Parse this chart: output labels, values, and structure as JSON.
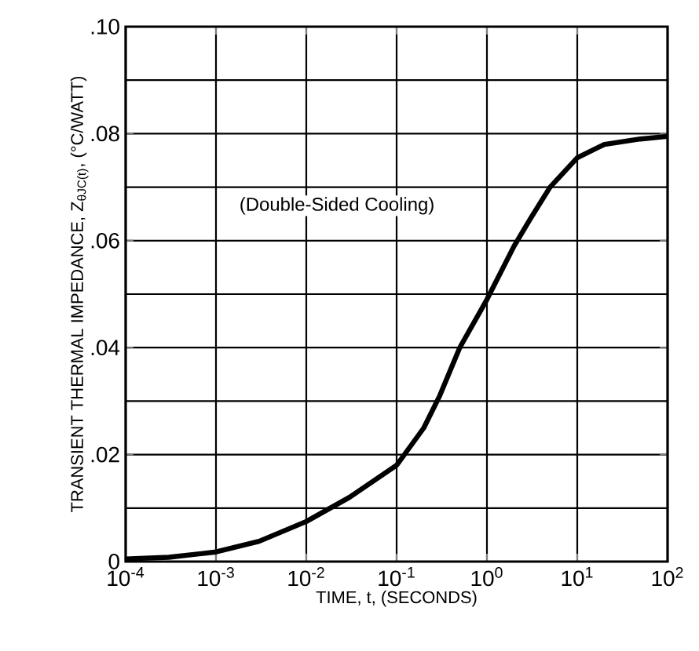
{
  "chart_data": {
    "type": "line",
    "xlabel": "TIME, t, (SECONDS)",
    "ylabel": "TRANSIENT THERMAL IMPEDANCE, Z$_{θJC(t)}$, (°C/WATT)",
    "annotations": [
      "(Double-Sided Cooling)"
    ],
    "log": "x",
    "grid": true,
    "marker": "none",
    "line_style": "solid",
    "xlim": [
      0.0001,
      100
    ],
    "ylim": [
      0,
      0.1
    ],
    "xticks": [
      {
        "value": 0.0001,
        "label": "10$^{-4}$"
      },
      {
        "value": 0.001,
        "label": "10$^{-3}$"
      },
      {
        "value": 0.01,
        "label": "10$^{-2}$"
      },
      {
        "value": 0.1,
        "label": "10$^{-1}$"
      },
      {
        "value": 1,
        "label": "10$^{0}$"
      },
      {
        "value": 10,
        "label": "10$^{1}$"
      },
      {
        "value": 100,
        "label": "10$^{2}$"
      }
    ],
    "yticks": [
      0,
      {
        "value": 0.02,
        "label": ".02"
      },
      {
        "value": 0.04,
        "label": ".04"
      },
      {
        "value": 0.06,
        "label": ".06"
      },
      {
        "value": 0.08,
        "label": ".08"
      },
      {
        "value": 0.1,
        "label": ".10"
      }
    ],
    "series": [
      {
        "color": "#000000",
        "x": [
          0.0001,
          0.0003,
          0.001,
          0.003,
          0.01,
          0.03,
          0.1,
          0.2,
          0.3,
          0.5,
          1,
          2,
          3,
          5,
          10,
          20,
          50,
          100
        ],
        "values": [
          0.0005,
          0.0008,
          0.0018,
          0.0038,
          0.0075,
          0.012,
          0.018,
          0.025,
          0.031,
          0.04,
          0.049,
          0.059,
          0.064,
          0.07,
          0.0755,
          0.078,
          0.079,
          0.0795
        ]
      }
    ]
  }
}
